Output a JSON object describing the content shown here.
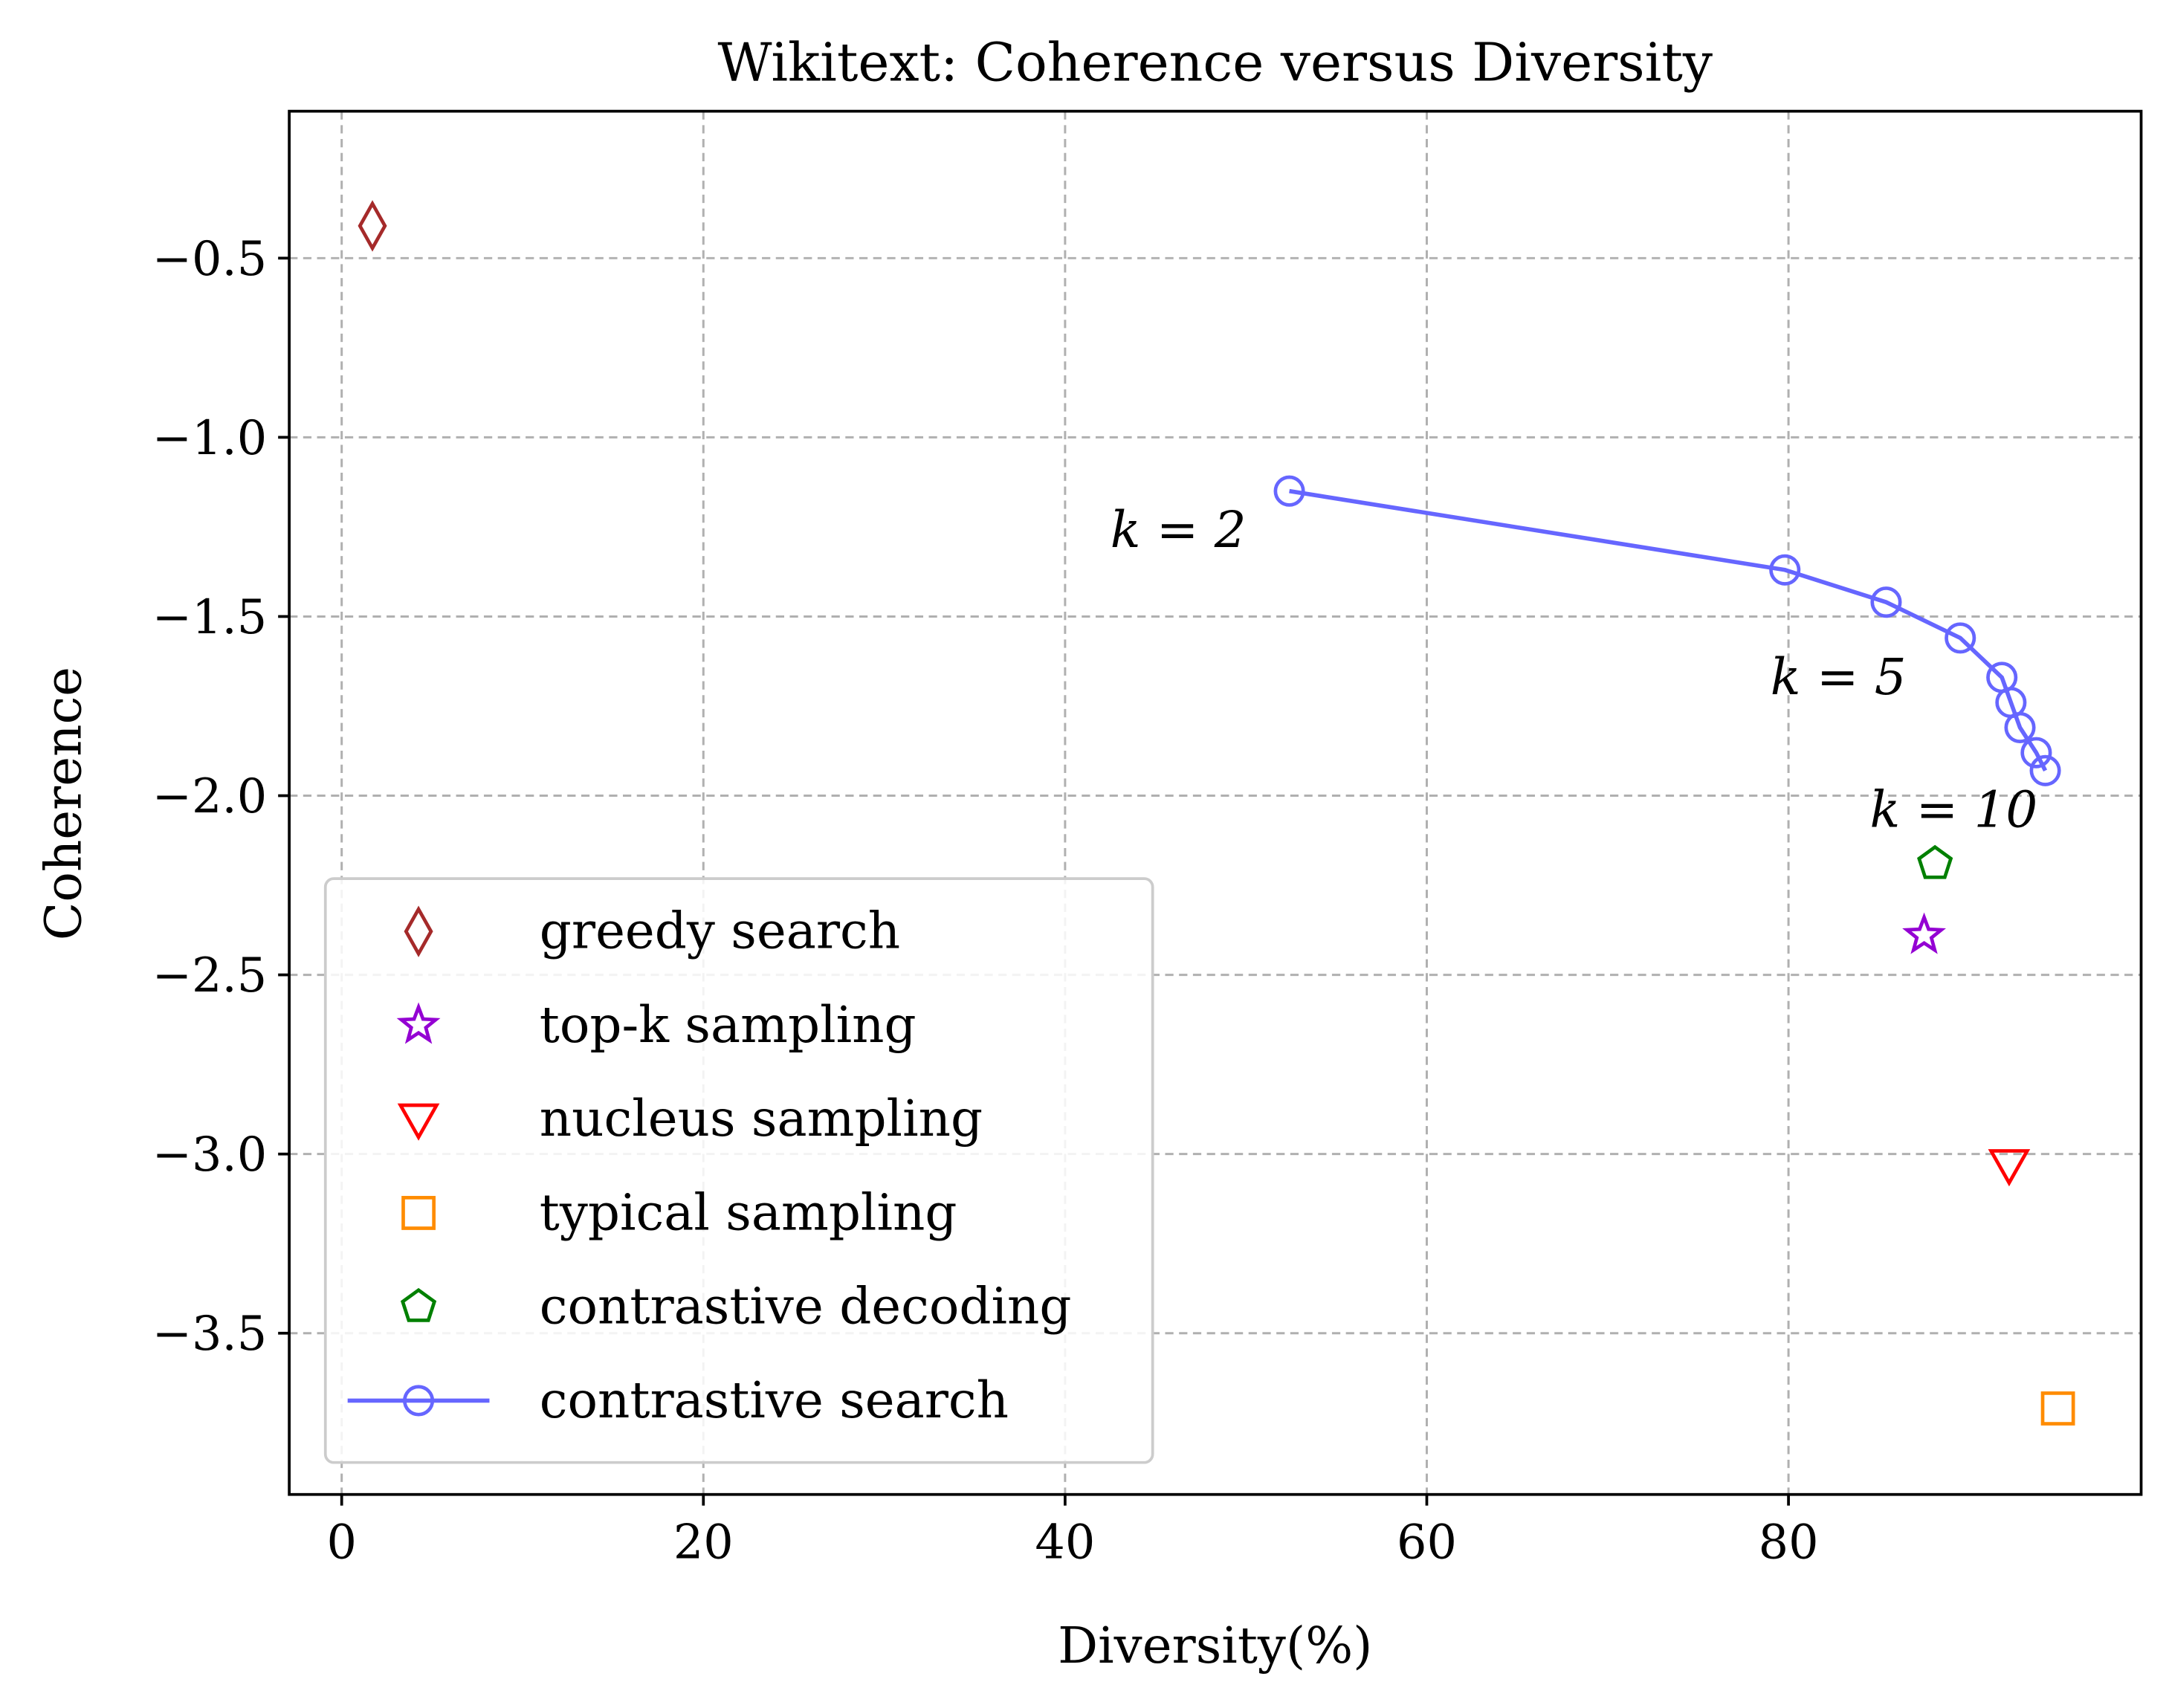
{
  "chart_data": {
    "type": "scatter",
    "title": "Wikitext: Coherence versus Diversity",
    "xlabel": "Diversity(%)",
    "ylabel": "Coherence",
    "xlim": [
      -2.9,
      99.5
    ],
    "ylim": [
      -3.95,
      -0.09
    ],
    "xticks": [
      0,
      20,
      40,
      60,
      80
    ],
    "xtick_labels": [
      "0",
      "20",
      "40",
      "60",
      "80"
    ],
    "yticks": [
      -0.5,
      -1.0,
      -1.5,
      -2.0,
      -2.5,
      -3.0,
      -3.5
    ],
    "ytick_labels": [
      "−0.5",
      "−1.0",
      "−1.5",
      "−2.0",
      "−2.5",
      "−3.0",
      "−3.5"
    ],
    "grid": true,
    "legend_placement": "lower-left",
    "series": [
      {
        "name": "greedy search",
        "marker": "diamond",
        "color": "#a52a2a",
        "x": [
          1.7
        ],
        "y": [
          -0.41
        ]
      },
      {
        "name": "top-k sampling",
        "marker": "star",
        "color": "#9400d3",
        "x": [
          87.5
        ],
        "y": [
          -2.39
        ]
      },
      {
        "name": "nucleus sampling",
        "marker": "triangle-down",
        "color": "#ff0000",
        "x": [
          92.2
        ],
        "y": [
          -3.03
        ]
      },
      {
        "name": "typical sampling",
        "marker": "square",
        "color": "#ff8c00",
        "x": [
          94.9
        ],
        "y": [
          -3.71
        ]
      },
      {
        "name": "contrastive decoding",
        "marker": "pentagon",
        "color": "#008000",
        "x": [
          88.1
        ],
        "y": [
          -2.19
        ]
      },
      {
        "name": "contrastive search",
        "marker": "circle",
        "line": true,
        "color": "#6666ff",
        "x": [
          52.4,
          79.8,
          85.4,
          89.5,
          91.8,
          92.3,
          92.8,
          93.7,
          94.2
        ],
        "y": [
          -1.15,
          -1.37,
          -1.46,
          -1.56,
          -1.67,
          -1.74,
          -1.81,
          -1.88,
          -1.93
        ]
      }
    ],
    "annotations": [
      {
        "text": "k = 2",
        "x": 42.5,
        "y": -1.26
      },
      {
        "text": "k = 5",
        "x": 79.0,
        "y": -1.67
      },
      {
        "text": "k = 10",
        "x": 84.5,
        "y": -2.04
      }
    ]
  }
}
